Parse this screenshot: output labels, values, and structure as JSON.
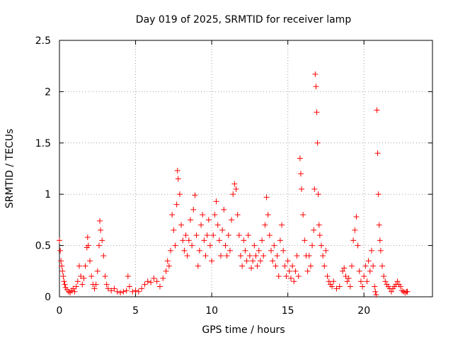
{
  "chart_data": {
    "type": "scatter",
    "title": "Day 019 of 2025, SRMTID for receiver lamp",
    "xlabel": "GPS time / hours",
    "ylabel": "SRMTID / TECUs",
    "xlim": [
      0,
      24.5
    ],
    "ylim": [
      0,
      2.5
    ],
    "xticks": [
      {
        "value": 0,
        "label": "0"
      },
      {
        "value": 5,
        "label": "5"
      },
      {
        "value": 10,
        "label": "10"
      },
      {
        "value": 15,
        "label": "15"
      },
      {
        "value": 20,
        "label": "20"
      }
    ],
    "yticks": [
      {
        "value": 0,
        "label": "0"
      },
      {
        "value": 0.5,
        "label": "0.5"
      },
      {
        "value": 1,
        "label": "1"
      },
      {
        "value": 1.5,
        "label": "1.5"
      },
      {
        "value": 2,
        "label": "2"
      },
      {
        "value": 2.5,
        "label": "2.5"
      }
    ],
    "grid": true,
    "marker": "+",
    "series": [
      {
        "name": "SRMTID",
        "color": "#ff0000",
        "points": [
          [
            0.0,
            0.55
          ],
          [
            0.05,
            0.45
          ],
          [
            0.1,
            0.35
          ],
          [
            0.15,
            0.3
          ],
          [
            0.2,
            0.25
          ],
          [
            0.25,
            0.2
          ],
          [
            0.3,
            0.15
          ],
          [
            0.35,
            0.12
          ],
          [
            0.4,
            0.09
          ],
          [
            0.5,
            0.07
          ],
          [
            0.6,
            0.05
          ],
          [
            0.7,
            0.04
          ],
          [
            0.8,
            0.06
          ],
          [
            0.9,
            0.08
          ],
          [
            1.0,
            0.05
          ],
          [
            1.1,
            0.1
          ],
          [
            1.2,
            0.15
          ],
          [
            1.3,
            0.3
          ],
          [
            1.4,
            0.2
          ],
          [
            1.5,
            0.12
          ],
          [
            1.6,
            0.18
          ],
          [
            1.7,
            0.3
          ],
          [
            1.8,
            0.48
          ],
          [
            1.85,
            0.58
          ],
          [
            1.9,
            0.5
          ],
          [
            2.0,
            0.35
          ],
          [
            2.1,
            0.2
          ],
          [
            2.2,
            0.12
          ],
          [
            2.3,
            0.08
          ],
          [
            2.4,
            0.12
          ],
          [
            2.5,
            0.25
          ],
          [
            2.6,
            0.5
          ],
          [
            2.65,
            0.74
          ],
          [
            2.7,
            0.65
          ],
          [
            2.8,
            0.55
          ],
          [
            2.9,
            0.4
          ],
          [
            3.0,
            0.2
          ],
          [
            3.1,
            0.12
          ],
          [
            3.2,
            0.08
          ],
          [
            3.4,
            0.06
          ],
          [
            3.6,
            0.08
          ],
          [
            3.8,
            0.05
          ],
          [
            4.0,
            0.04
          ],
          [
            4.2,
            0.05
          ],
          [
            4.4,
            0.06
          ],
          [
            4.5,
            0.2
          ],
          [
            4.6,
            0.1
          ],
          [
            4.8,
            0.05
          ],
          [
            5.0,
            0.06
          ],
          [
            5.2,
            0.05
          ],
          [
            5.4,
            0.08
          ],
          [
            5.6,
            0.12
          ],
          [
            5.8,
            0.15
          ],
          [
            6.0,
            0.14
          ],
          [
            6.2,
            0.18
          ],
          [
            6.4,
            0.15
          ],
          [
            6.6,
            0.1
          ],
          [
            6.8,
            0.18
          ],
          [
            7.0,
            0.25
          ],
          [
            7.1,
            0.35
          ],
          [
            7.2,
            0.3
          ],
          [
            7.3,
            0.45
          ],
          [
            7.4,
            0.8
          ],
          [
            7.5,
            0.65
          ],
          [
            7.6,
            0.5
          ],
          [
            7.7,
            0.9
          ],
          [
            7.75,
            1.23
          ],
          [
            7.8,
            1.15
          ],
          [
            7.9,
            1.0
          ],
          [
            8.0,
            0.7
          ],
          [
            8.1,
            0.55
          ],
          [
            8.2,
            0.45
          ],
          [
            8.3,
            0.6
          ],
          [
            8.4,
            0.4
          ],
          [
            8.5,
            0.55
          ],
          [
            8.6,
            0.75
          ],
          [
            8.7,
            0.5
          ],
          [
            8.8,
            0.85
          ],
          [
            8.9,
            0.99
          ],
          [
            9.0,
            0.6
          ],
          [
            9.1,
            0.3
          ],
          [
            9.2,
            0.45
          ],
          [
            9.3,
            0.7
          ],
          [
            9.4,
            0.8
          ],
          [
            9.5,
            0.55
          ],
          [
            9.6,
            0.4
          ],
          [
            9.7,
            0.6
          ],
          [
            9.8,
            0.75
          ],
          [
            9.9,
            0.5
          ],
          [
            10.0,
            0.35
          ],
          [
            10.1,
            0.6
          ],
          [
            10.2,
            0.8
          ],
          [
            10.3,
            0.93
          ],
          [
            10.4,
            0.7
          ],
          [
            10.5,
            0.55
          ],
          [
            10.6,
            0.4
          ],
          [
            10.7,
            0.65
          ],
          [
            10.8,
            0.85
          ],
          [
            10.9,
            0.5
          ],
          [
            11.0,
            0.4
          ],
          [
            11.1,
            0.6
          ],
          [
            11.2,
            0.45
          ],
          [
            11.3,
            0.75
          ],
          [
            11.4,
            1.0
          ],
          [
            11.5,
            1.1
          ],
          [
            11.6,
            1.05
          ],
          [
            11.7,
            0.8
          ],
          [
            11.8,
            0.6
          ],
          [
            11.9,
            0.4
          ],
          [
            12.0,
            0.3
          ],
          [
            12.1,
            0.55
          ],
          [
            12.2,
            0.45
          ],
          [
            12.3,
            0.35
          ],
          [
            12.4,
            0.6
          ],
          [
            12.5,
            0.4
          ],
          [
            12.6,
            0.28
          ],
          [
            12.7,
            0.35
          ],
          [
            12.8,
            0.5
          ],
          [
            12.9,
            0.4
          ],
          [
            13.0,
            0.3
          ],
          [
            13.1,
            0.45
          ],
          [
            13.2,
            0.35
          ],
          [
            13.3,
            0.55
          ],
          [
            13.4,
            0.4
          ],
          [
            13.5,
            0.7
          ],
          [
            13.6,
            0.97
          ],
          [
            13.7,
            0.8
          ],
          [
            13.8,
            0.6
          ],
          [
            13.9,
            0.45
          ],
          [
            14.0,
            0.35
          ],
          [
            14.1,
            0.5
          ],
          [
            14.2,
            0.3
          ],
          [
            14.3,
            0.4
          ],
          [
            14.4,
            0.2
          ],
          [
            14.5,
            0.55
          ],
          [
            14.6,
            0.7
          ],
          [
            14.7,
            0.45
          ],
          [
            14.8,
            0.3
          ],
          [
            14.9,
            0.2
          ],
          [
            15.0,
            0.35
          ],
          [
            15.1,
            0.25
          ],
          [
            15.2,
            0.18
          ],
          [
            15.3,
            0.3
          ],
          [
            15.4,
            0.15
          ],
          [
            15.5,
            0.25
          ],
          [
            15.6,
            0.4
          ],
          [
            15.7,
            0.2
          ],
          [
            15.8,
            1.35
          ],
          [
            15.85,
            1.2
          ],
          [
            15.9,
            1.05
          ],
          [
            16.0,
            0.8
          ],
          [
            16.1,
            0.55
          ],
          [
            16.2,
            0.4
          ],
          [
            16.3,
            0.25
          ],
          [
            16.4,
            0.4
          ],
          [
            16.5,
            0.3
          ],
          [
            16.6,
            0.5
          ],
          [
            16.7,
            0.65
          ],
          [
            16.75,
            1.05
          ],
          [
            16.8,
            2.17
          ],
          [
            16.85,
            2.05
          ],
          [
            16.9,
            1.8
          ],
          [
            16.95,
            1.5
          ],
          [
            17.0,
            1.0
          ],
          [
            17.05,
            0.7
          ],
          [
            17.1,
            0.6
          ],
          [
            17.2,
            0.5
          ],
          [
            17.3,
            0.4
          ],
          [
            17.4,
            0.3
          ],
          [
            17.5,
            0.45
          ],
          [
            17.6,
            0.2
          ],
          [
            17.7,
            0.15
          ],
          [
            17.8,
            0.12
          ],
          [
            17.9,
            0.1
          ],
          [
            18.0,
            0.15
          ],
          [
            18.2,
            0.08
          ],
          [
            18.4,
            0.1
          ],
          [
            18.6,
            0.25
          ],
          [
            18.7,
            0.28
          ],
          [
            18.8,
            0.2
          ],
          [
            18.9,
            0.15
          ],
          [
            19.0,
            0.18
          ],
          [
            19.1,
            0.1
          ],
          [
            19.2,
            0.3
          ],
          [
            19.3,
            0.55
          ],
          [
            19.4,
            0.65
          ],
          [
            19.5,
            0.78
          ],
          [
            19.6,
            0.5
          ],
          [
            19.7,
            0.25
          ],
          [
            19.8,
            0.15
          ],
          [
            19.9,
            0.1
          ],
          [
            20.0,
            0.2
          ],
          [
            20.1,
            0.3
          ],
          [
            20.2,
            0.15
          ],
          [
            20.3,
            0.35
          ],
          [
            20.4,
            0.25
          ],
          [
            20.5,
            0.45
          ],
          [
            20.6,
            0.3
          ],
          [
            20.7,
            0.1
          ],
          [
            20.75,
            0.05
          ],
          [
            20.8,
            0.02
          ],
          [
            20.85,
            1.82
          ],
          [
            20.9,
            1.4
          ],
          [
            20.95,
            1.0
          ],
          [
            21.0,
            0.7
          ],
          [
            21.05,
            0.55
          ],
          [
            21.1,
            0.45
          ],
          [
            21.2,
            0.3
          ],
          [
            21.3,
            0.2
          ],
          [
            21.4,
            0.15
          ],
          [
            21.5,
            0.12
          ],
          [
            21.6,
            0.1
          ],
          [
            21.7,
            0.08
          ],
          [
            21.8,
            0.05
          ],
          [
            21.9,
            0.08
          ],
          [
            22.0,
            0.1
          ],
          [
            22.1,
            0.12
          ],
          [
            22.2,
            0.15
          ],
          [
            22.3,
            0.12
          ],
          [
            22.4,
            0.1
          ],
          [
            22.5,
            0.06
          ],
          [
            22.6,
            0.05
          ],
          [
            22.7,
            0.04
          ],
          [
            22.8,
            0.05
          ],
          [
            22.85,
            0.05
          ]
        ]
      }
    ]
  }
}
